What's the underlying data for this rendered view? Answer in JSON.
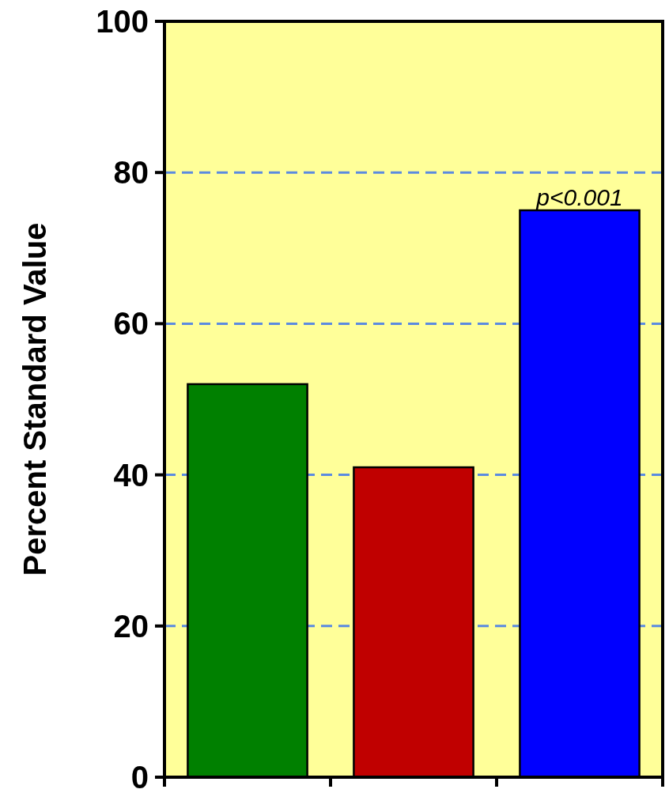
{
  "chart_data": {
    "type": "bar",
    "ylabel": "Percent Standard Value",
    "categories": [
      null,
      null,
      null
    ],
    "values": [
      52,
      41,
      75
    ],
    "colors": [
      "#008000",
      "#c00000",
      "#0000ff"
    ],
    "ylim": [
      0,
      100
    ],
    "yticks": [
      0,
      20,
      40,
      60,
      80,
      100
    ],
    "grid": "y",
    "annotations": [
      {
        "text": "p<0.001",
        "y": 75
      }
    ]
  }
}
